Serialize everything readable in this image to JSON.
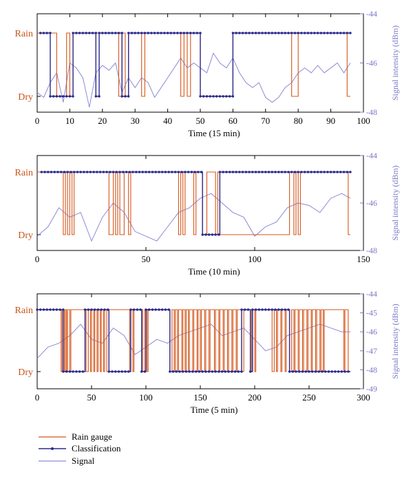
{
  "colors": {
    "rain_gauge": "#d4561b",
    "classification": "#2b2a8c",
    "signal": "#8c8ad6",
    "right_axis": "#7a78c8",
    "category_label": "#c8541a"
  },
  "legend": {
    "items": [
      {
        "label": "Rain gauge",
        "style": "line",
        "color": "#d4561b"
      },
      {
        "label": "Classification",
        "style": "line-dot",
        "color": "#2b2a8c"
      },
      {
        "label": "Signal",
        "style": "line",
        "color": "#8c8ad6"
      }
    ]
  },
  "chart_data": [
    {
      "type": "line",
      "xlabel": "Time (15 min)",
      "ylabel_left_categories": [
        "Rain",
        "Dry"
      ],
      "ylabel_right": "Signal intensity (dBm)",
      "xlim": [
        0,
        100
      ],
      "xticks": [
        0,
        10,
        20,
        30,
        40,
        50,
        60,
        70,
        80,
        90,
        100
      ],
      "y2lim": [
        -48,
        -44
      ],
      "y2ticks": [
        -44,
        -46,
        -48
      ],
      "y2ticks_labels": [
        "-44",
        "-46",
        "-48"
      ],
      "rain_gauge_segments": [
        [
          0,
          6,
          1
        ],
        [
          6,
          9,
          0
        ],
        [
          9,
          10,
          1
        ],
        [
          10,
          11,
          0
        ],
        [
          11,
          25,
          1
        ],
        [
          25,
          26,
          0
        ],
        [
          26,
          27,
          1
        ],
        [
          27,
          28,
          0
        ],
        [
          28,
          32,
          1
        ],
        [
          32,
          33,
          0
        ],
        [
          33,
          44,
          1
        ],
        [
          44,
          45,
          0
        ],
        [
          45,
          46,
          1
        ],
        [
          46,
          47,
          0
        ],
        [
          47,
          50,
          1
        ],
        [
          50,
          60,
          0
        ],
        [
          60,
          78,
          1
        ],
        [
          78,
          80,
          0
        ],
        [
          80,
          95,
          1
        ],
        [
          95,
          96,
          0
        ]
      ],
      "classification_segments": [
        [
          1,
          4,
          1
        ],
        [
          4,
          11,
          0
        ],
        [
          11,
          18,
          1
        ],
        [
          18,
          19,
          0
        ],
        [
          19,
          26,
          1
        ],
        [
          26,
          28,
          0
        ],
        [
          28,
          50,
          1
        ],
        [
          50,
          60,
          0
        ],
        [
          60,
          96,
          1
        ]
      ],
      "series": [
        {
          "name": "Signal",
          "x": [
            0,
            2,
            4,
            6,
            8,
            10,
            12,
            14,
            16,
            18,
            20,
            22,
            24,
            26,
            28,
            30,
            32,
            34,
            36,
            38,
            40,
            42,
            44,
            46,
            48,
            50,
            52,
            54,
            56,
            58,
            60,
            62,
            64,
            66,
            68,
            70,
            72,
            74,
            76,
            78,
            80,
            82,
            84,
            86,
            88,
            90,
            92,
            94,
            96
          ],
          "y": [
            -47.2,
            -47.4,
            -46.8,
            -46.4,
            -47.6,
            -46.0,
            -46.2,
            -46.6,
            -47.8,
            -46.4,
            -46.1,
            -46.3,
            -46.0,
            -47.2,
            -46.6,
            -47.0,
            -46.6,
            -46.8,
            -47.4,
            -47.0,
            -46.6,
            -46.2,
            -45.8,
            -46.2,
            -46.0,
            -46.2,
            -46.4,
            -45.6,
            -46.0,
            -46.2,
            -45.8,
            -46.4,
            -46.8,
            -47.0,
            -46.8,
            -47.4,
            -47.6,
            -47.4,
            -47.0,
            -46.8,
            -46.4,
            -46.2,
            -46.4,
            -46.1,
            -46.4,
            -46.2,
            -46.0,
            -46.4,
            -46.0
          ]
        }
      ]
    },
    {
      "type": "line",
      "xlabel": "Time (10 min)",
      "ylabel_left_categories": [
        "Rain",
        "Dry"
      ],
      "ylabel_right": "Signal intensity (dBm)",
      "xlim": [
        0,
        150
      ],
      "xticks": [
        0,
        50,
        100,
        150
      ],
      "y2lim": [
        -48,
        -44
      ],
      "y2ticks": [
        -44,
        -46,
        -48
      ],
      "y2ticks_labels": [
        "-44",
        "-46",
        "-48"
      ],
      "rain_gauge_segments": [
        [
          0,
          12,
          1
        ],
        [
          12,
          13,
          0
        ],
        [
          13,
          14,
          1
        ],
        [
          14,
          15,
          0
        ],
        [
          15,
          16,
          1
        ],
        [
          16,
          17,
          0
        ],
        [
          17,
          33,
          1
        ],
        [
          33,
          35,
          0
        ],
        [
          35,
          36,
          1
        ],
        [
          36,
          37,
          0
        ],
        [
          37,
          38,
          1
        ],
        [
          38,
          40,
          0
        ],
        [
          40,
          42,
          1
        ],
        [
          42,
          43,
          0
        ],
        [
          43,
          65,
          1
        ],
        [
          65,
          66,
          0
        ],
        [
          66,
          67,
          1
        ],
        [
          67,
          68,
          0
        ],
        [
          68,
          72,
          1
        ],
        [
          72,
          73,
          0
        ],
        [
          73,
          76,
          1
        ],
        [
          76,
          78,
          0
        ],
        [
          78,
          82,
          1
        ],
        [
          82,
          83,
          0
        ],
        [
          83,
          84,
          1
        ],
        [
          84,
          116,
          0
        ],
        [
          116,
          118,
          1
        ],
        [
          118,
          119,
          0
        ],
        [
          119,
          120,
          1
        ],
        [
          120,
          121,
          0
        ],
        [
          121,
          143,
          1
        ],
        [
          143,
          144,
          0
        ]
      ],
      "classification_segments": [
        [
          2,
          76,
          1
        ],
        [
          76,
          84,
          0
        ],
        [
          84,
          144,
          1
        ]
      ],
      "series": [
        {
          "name": "Signal",
          "x": [
            0,
            5,
            10,
            15,
            20,
            25,
            30,
            35,
            40,
            45,
            50,
            55,
            60,
            65,
            70,
            75,
            80,
            85,
            90,
            95,
            100,
            105,
            110,
            115,
            120,
            125,
            130,
            135,
            140,
            144
          ],
          "y": [
            -47.4,
            -47.0,
            -46.2,
            -46.6,
            -46.4,
            -47.6,
            -46.6,
            -46.0,
            -46.4,
            -47.2,
            -47.4,
            -47.6,
            -47.0,
            -46.4,
            -46.2,
            -45.8,
            -45.6,
            -46.0,
            -46.4,
            -46.6,
            -47.4,
            -47.0,
            -46.8,
            -46.2,
            -46.0,
            -46.1,
            -46.4,
            -45.8,
            -45.6,
            -45.8
          ]
        }
      ]
    },
    {
      "type": "line",
      "xlabel": "Time (5 min)",
      "ylabel_left_categories": [
        "Rain",
        "Dry"
      ],
      "ylabel_right": "Signal intensity (dBm)",
      "xlim": [
        0,
        300
      ],
      "xticks": [
        0,
        50,
        100,
        150,
        200,
        250,
        300
      ],
      "y2lim": [
        -49,
        -44
      ],
      "y2ticks": [
        -44,
        -45,
        -46,
        -47,
        -48,
        -49
      ],
      "y2ticks_labels": [
        "-44",
        "-45",
        "-46",
        "-47",
        "-48",
        "-49"
      ],
      "rain_gauge_segments": [
        [
          0,
          22,
          1
        ],
        [
          22,
          23,
          0
        ],
        [
          23,
          25,
          1
        ],
        [
          25,
          26,
          0
        ],
        [
          26,
          27,
          1
        ],
        [
          27,
          28,
          0
        ],
        [
          28,
          30,
          1
        ],
        [
          30,
          31,
          0
        ],
        [
          31,
          45,
          1
        ],
        [
          45,
          47,
          0
        ],
        [
          47,
          49,
          1
        ],
        [
          49,
          50,
          0
        ],
        [
          50,
          52,
          1
        ],
        [
          52,
          53,
          0
        ],
        [
          53,
          55,
          1
        ],
        [
          55,
          56,
          0
        ],
        [
          56,
          58,
          1
        ],
        [
          58,
          59,
          0
        ],
        [
          59,
          61,
          1
        ],
        [
          61,
          62,
          0
        ],
        [
          62,
          64,
          1
        ],
        [
          64,
          66,
          0
        ],
        [
          66,
          85,
          1
        ],
        [
          85,
          86,
          0
        ],
        [
          86,
          88,
          1
        ],
        [
          88,
          89,
          0
        ],
        [
          89,
          97,
          1
        ],
        [
          97,
          99,
          0
        ],
        [
          99,
          101,
          1
        ],
        [
          101,
          102,
          0
        ],
        [
          102,
          122,
          1
        ],
        [
          122,
          124,
          0
        ],
        [
          124,
          126,
          1
        ],
        [
          126,
          127,
          0
        ],
        [
          127,
          129,
          1
        ],
        [
          129,
          130,
          0
        ],
        [
          130,
          133,
          1
        ],
        [
          133,
          134,
          0
        ],
        [
          134,
          136,
          1
        ],
        [
          136,
          137,
          0
        ],
        [
          137,
          139,
          1
        ],
        [
          139,
          140,
          0
        ],
        [
          140,
          143,
          1
        ],
        [
          143,
          144,
          0
        ],
        [
          144,
          147,
          1
        ],
        [
          147,
          148,
          0
        ],
        [
          148,
          150,
          1
        ],
        [
          150,
          151,
          0
        ],
        [
          151,
          154,
          1
        ],
        [
          154,
          155,
          0
        ],
        [
          155,
          158,
          1
        ],
        [
          158,
          159,
          0
        ],
        [
          159,
          163,
          1
        ],
        [
          163,
          164,
          0
        ],
        [
          164,
          167,
          1
        ],
        [
          167,
          168,
          0
        ],
        [
          168,
          171,
          1
        ],
        [
          171,
          172,
          0
        ],
        [
          172,
          175,
          1
        ],
        [
          175,
          176,
          0
        ],
        [
          176,
          179,
          1
        ],
        [
          179,
          180,
          0
        ],
        [
          180,
          183,
          1
        ],
        [
          183,
          184,
          0
        ],
        [
          184,
          188,
          1
        ],
        [
          188,
          190,
          0
        ],
        [
          190,
          197,
          1
        ],
        [
          197,
          198,
          0
        ],
        [
          198,
          200,
          1
        ],
        [
          200,
          201,
          0
        ],
        [
          201,
          216,
          1
        ],
        [
          216,
          218,
          0
        ],
        [
          218,
          220,
          1
        ],
        [
          220,
          221,
          0
        ],
        [
          221,
          224,
          1
        ],
        [
          224,
          225,
          0
        ],
        [
          225,
          228,
          1
        ],
        [
          228,
          229,
          0
        ],
        [
          229,
          232,
          1
        ],
        [
          232,
          234,
          0
        ],
        [
          234,
          236,
          1
        ],
        [
          236,
          237,
          0
        ],
        [
          237,
          240,
          1
        ],
        [
          240,
          241,
          0
        ],
        [
          241,
          244,
          1
        ],
        [
          244,
          245,
          0
        ],
        [
          245,
          248,
          1
        ],
        [
          248,
          249,
          0
        ],
        [
          249,
          252,
          1
        ],
        [
          252,
          253,
          0
        ],
        [
          253,
          256,
          1
        ],
        [
          256,
          257,
          0
        ],
        [
          257,
          260,
          1
        ],
        [
          260,
          261,
          0
        ],
        [
          261,
          263,
          1
        ],
        [
          263,
          264,
          0
        ],
        [
          264,
          282,
          1
        ],
        [
          282,
          283,
          0
        ],
        [
          283,
          286,
          1
        ],
        [
          286,
          288,
          0
        ]
      ],
      "classification_segments": [
        [
          0,
          24,
          1
        ],
        [
          24,
          44,
          0
        ],
        [
          44,
          66,
          1
        ],
        [
          66,
          86,
          0
        ],
        [
          86,
          96,
          1
        ],
        [
          96,
          100,
          0
        ],
        [
          100,
          122,
          1
        ],
        [
          122,
          188,
          0
        ],
        [
          188,
          196,
          1
        ],
        [
          196,
          198,
          0
        ],
        [
          198,
          232,
          1
        ],
        [
          232,
          288,
          0
        ]
      ],
      "series": [
        {
          "name": "Signal",
          "x": [
            0,
            10,
            20,
            30,
            40,
            50,
            60,
            70,
            80,
            90,
            100,
            110,
            120,
            130,
            140,
            150,
            160,
            170,
            180,
            190,
            200,
            210,
            220,
            230,
            240,
            250,
            260,
            270,
            280,
            288
          ],
          "y": [
            -47.4,
            -46.8,
            -46.6,
            -46.2,
            -45.6,
            -46.4,
            -46.6,
            -45.8,
            -46.2,
            -47.2,
            -46.8,
            -46.4,
            -46.6,
            -46.2,
            -46.0,
            -45.8,
            -45.6,
            -46.2,
            -46.0,
            -45.8,
            -46.4,
            -47.0,
            -46.8,
            -46.2,
            -46.0,
            -45.8,
            -45.6,
            -45.8,
            -46.0,
            -46.0
          ]
        }
      ]
    }
  ]
}
